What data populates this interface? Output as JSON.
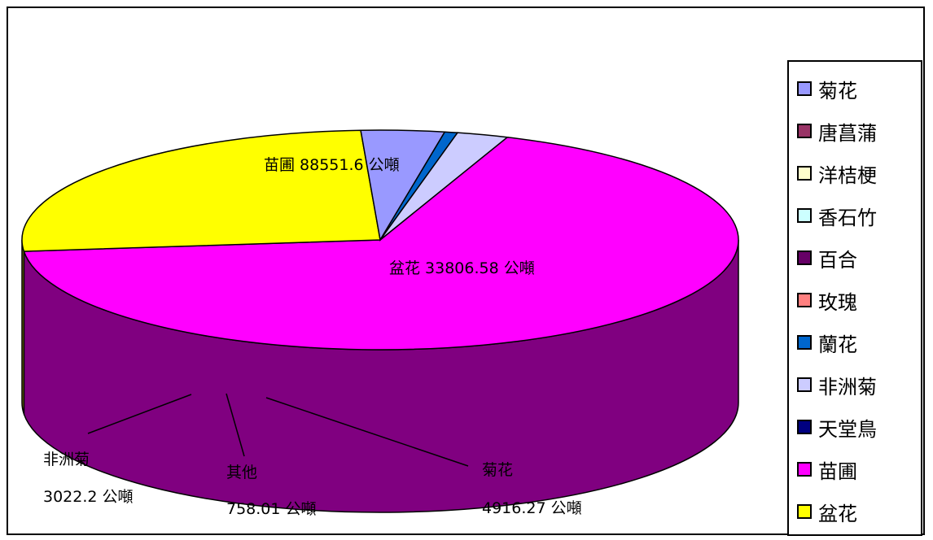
{
  "chart_data": {
    "type": "pie",
    "slices": [
      {
        "name": "苗圃",
        "value": 88551.6,
        "label": "苗圃 88551.6 公噸",
        "color": "#ff00ff",
        "side": "#800080"
      },
      {
        "name": "盆花",
        "value": 33806.58,
        "label": "盆花 33806.58 公噸",
        "color": "#ffff00",
        "side": "#808000"
      },
      {
        "name": "菊花",
        "value": 4916.27,
        "label_name": "菊花",
        "label_value": "4916.27 公噸",
        "color": "#9999ff",
        "side": "#4d4d80"
      },
      {
        "name": "其他",
        "value": 758.01,
        "label_name": "其他",
        "label_value": "758.01 公噸",
        "color": "#0066cc",
        "side": "#003366"
      },
      {
        "name": "非洲菊",
        "value": 3022.2,
        "label_name": "非洲菊",
        "label_value": "3022.2 公噸",
        "color": "#ccccff",
        "side": "#666680"
      }
    ],
    "legend": {
      "position": "right",
      "items": [
        {
          "label": "菊花",
          "color": "#9999ff"
        },
        {
          "label": "唐菖蒲",
          "color": "#993366"
        },
        {
          "label": "洋桔梗",
          "color": "#ffffcc"
        },
        {
          "label": "香石竹",
          "color": "#ccffff"
        },
        {
          "label": "百合",
          "color": "#660066"
        },
        {
          "label": "玫瑰",
          "color": "#ff8080"
        },
        {
          "label": "蘭花",
          "color": "#0066cc"
        },
        {
          "label": "非洲菊",
          "color": "#ccccff"
        },
        {
          "label": "天堂鳥",
          "color": "#000080"
        },
        {
          "label": "苗圃",
          "color": "#ff00ff"
        },
        {
          "label": "盆花",
          "color": "#ffff00"
        }
      ]
    }
  }
}
